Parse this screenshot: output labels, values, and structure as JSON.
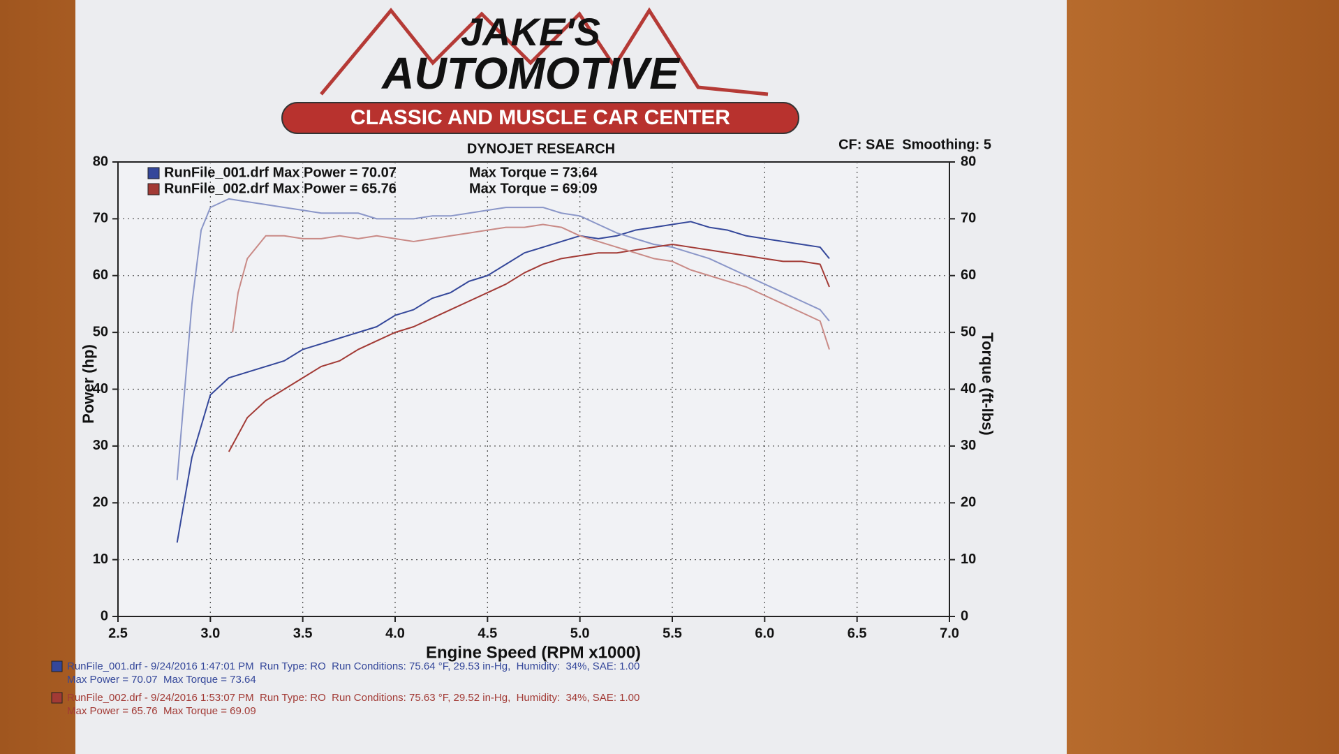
{
  "header": {
    "line1": "JAKE'S",
    "line2": "AUTOMOTIVE",
    "banner": "CLASSIC AND MUSCLE CAR CENTER"
  },
  "chart_data": {
    "type": "line",
    "title": "DYNOJET RESEARCH",
    "subtitle": "CF: SAE  Smoothing: 5",
    "xlabel": "Engine Speed (RPM x1000)",
    "ylabel": "Power (hp)",
    "y2label": "Torque (ft-lbs)",
    "xlim": [
      2.5,
      7.0
    ],
    "xticks": [
      2.5,
      {
        "value": 3,
        "label": "3.0"
      },
      3.5,
      {
        "value": 4,
        "label": "4.0"
      },
      4.5,
      {
        "value": 5,
        "label": "5.0"
      },
      5.5,
      {
        "value": 6,
        "label": "6.0"
      },
      6.5,
      {
        "value": 7,
        "label": "7.0"
      }
    ],
    "ylim": [
      0,
      80
    ],
    "yticks": [
      0,
      10,
      20,
      30,
      40,
      50,
      60,
      70,
      80
    ],
    "y2lim": [
      0,
      80
    ],
    "y2ticks": [
      0,
      10,
      20,
      30,
      40,
      50,
      60,
      70,
      80
    ],
    "grid": true,
    "legend": [
      {
        "text": "RunFile_001.drf Max Power = 70.07",
        "torque": "Max Torque = 73.64",
        "color": "#34479a"
      },
      {
        "text": "RunFile_002.drf Max Power = 65.76",
        "torque": "Max Torque = 69.09",
        "color": "#a23a35"
      }
    ],
    "series": [
      {
        "color": "#34479a",
        "x": [
          2.82,
          2.9,
          3.0,
          3.1,
          3.2,
          3.3,
          3.4,
          3.5,
          3.6,
          3.7,
          3.8,
          3.9,
          4.0,
          4.1,
          4.2,
          4.3,
          4.4,
          4.5,
          4.6,
          4.7,
          4.8,
          4.9,
          5.0,
          5.1,
          5.2,
          5.3,
          5.4,
          5.5,
          5.6,
          5.7,
          5.8,
          5.9,
          6.0,
          6.1,
          6.2,
          6.3,
          6.35
        ],
        "values": [
          13,
          28,
          39,
          42,
          43,
          44,
          45,
          47,
          48,
          49,
          50,
          51,
          53,
          54,
          56,
          57,
          59,
          60,
          62,
          64,
          65,
          66,
          67,
          66.5,
          67,
          68,
          68.5,
          69,
          69.5,
          68.5,
          68,
          67,
          66.5,
          66,
          65.5,
          65,
          63
        ]
      },
      {
        "color": "#8a96c8",
        "axis": "y2",
        "x": [
          2.82,
          2.9,
          2.95,
          3.0,
          3.1,
          3.2,
          3.3,
          3.4,
          3.5,
          3.6,
          3.7,
          3.8,
          3.9,
          4.0,
          4.1,
          4.2,
          4.3,
          4.4,
          4.5,
          4.6,
          4.7,
          4.8,
          4.9,
          5.0,
          5.1,
          5.2,
          5.3,
          5.4,
          5.5,
          5.6,
          5.7,
          5.8,
          5.9,
          6.0,
          6.1,
          6.2,
          6.3,
          6.35
        ],
        "values": [
          24,
          55,
          68,
          72,
          73.5,
          73,
          72.5,
          72,
          71.5,
          71,
          71,
          71,
          70,
          70,
          70,
          70.5,
          70.5,
          71,
          71.5,
          72,
          72,
          72,
          71,
          70.5,
          69,
          67.5,
          66.5,
          65.5,
          65,
          64,
          63,
          61.5,
          60,
          58.5,
          57,
          55.5,
          54,
          52
        ]
      },
      {
        "color": "#a23a35",
        "x": [
          3.1,
          3.2,
          3.3,
          3.4,
          3.5,
          3.6,
          3.7,
          3.8,
          3.9,
          4.0,
          4.1,
          4.2,
          4.3,
          4.4,
          4.5,
          4.6,
          4.7,
          4.8,
          4.9,
          5.0,
          5.1,
          5.2,
          5.3,
          5.4,
          5.5,
          5.6,
          5.7,
          5.8,
          5.9,
          6.0,
          6.1,
          6.2,
          6.3,
          6.35
        ],
        "values": [
          29,
          35,
          38,
          40,
          42,
          44,
          45,
          47,
          48.5,
          50,
          51,
          52.5,
          54,
          55.5,
          57,
          58.5,
          60.5,
          62,
          63,
          63.5,
          64,
          64,
          64.5,
          65,
          65.5,
          65,
          64.5,
          64,
          63.5,
          63,
          62.5,
          62.5,
          62,
          58
        ]
      },
      {
        "color": "#c98a86",
        "axis": "y2",
        "x": [
          3.12,
          3.15,
          3.2,
          3.3,
          3.4,
          3.5,
          3.6,
          3.7,
          3.8,
          3.9,
          4.0,
          4.1,
          4.2,
          4.3,
          4.4,
          4.5,
          4.6,
          4.7,
          4.8,
          4.9,
          5.0,
          5.1,
          5.2,
          5.3,
          5.4,
          5.5,
          5.6,
          5.7,
          5.8,
          5.9,
          6.0,
          6.1,
          6.2,
          6.3,
          6.35
        ],
        "values": [
          50,
          57,
          63,
          67,
          67,
          66.5,
          66.5,
          67,
          66.5,
          67,
          66.5,
          66,
          66.5,
          67,
          67.5,
          68,
          68.5,
          68.5,
          69,
          68.5,
          67,
          66,
          65,
          64,
          63,
          62.5,
          61,
          60,
          59,
          58,
          56.5,
          55,
          53.5,
          52,
          47
        ]
      }
    ]
  },
  "footer": [
    {
      "line1": "RunFile_001.drf - 9/24/2016 1:47:01 PM  Run Type: RO  Run Conditions: 75.64 °F, 29.53 in-Hg,  Humidity:  34%, SAE: 1.00",
      "line2": "Max Power = 70.07  Max Torque = 73.64",
      "color": "#34479a"
    },
    {
      "line1": "RunFile_002.drf - 9/24/2016 1:53:07 PM  Run Type: RO  Run Conditions: 75.63 °F, 29.52 in-Hg,  Humidity:  34%, SAE: 1.00",
      "line2": "Max Power = 65.76  Max Torque = 69.09",
      "color": "#a23a35"
    }
  ]
}
